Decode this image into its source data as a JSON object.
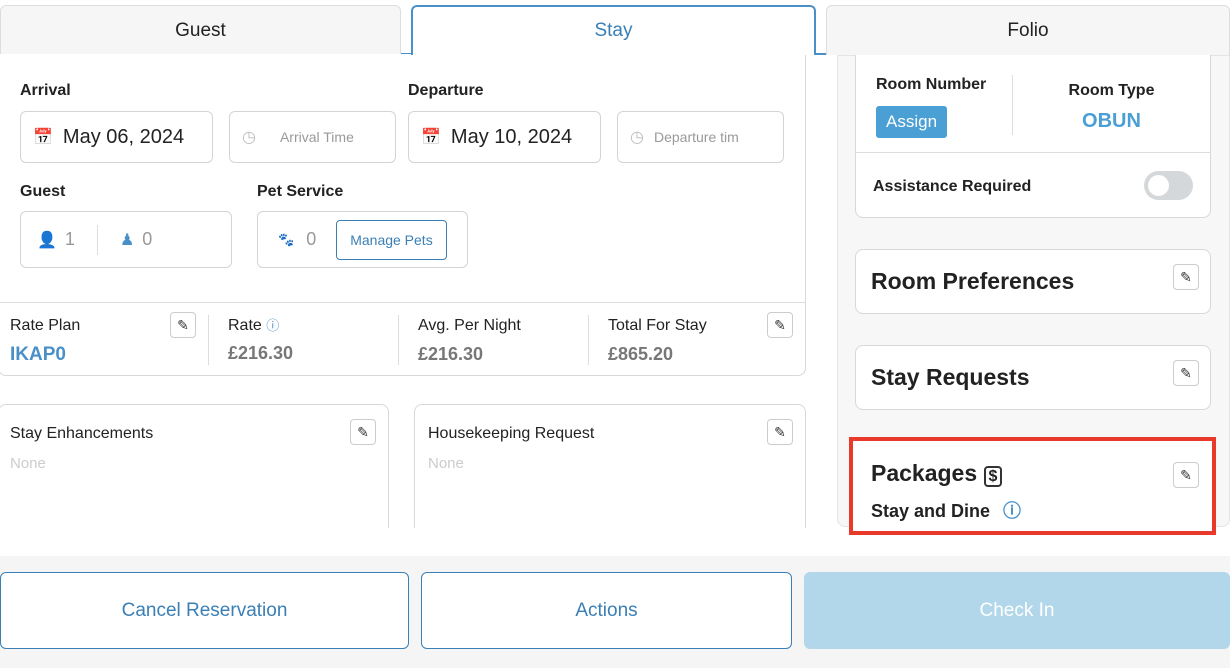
{
  "tabs": [
    {
      "label": "Guest"
    },
    {
      "label": "Stay"
    },
    {
      "label": "Folio"
    }
  ],
  "stay": {
    "arrival_label": "Arrival",
    "arrival_date": "May 06, 2024",
    "arrival_time_placeholder": "Arrival Time",
    "departure_label": "Departure",
    "departure_date": "May 10, 2024",
    "departure_time_placeholder": "Departure tim",
    "guest_label": "Guest",
    "adults": "1",
    "children": "0",
    "pet_label": "Pet Service",
    "pets": "0",
    "manage_pets": "Manage Pets"
  },
  "rates": {
    "rate_plan_label": "Rate Plan",
    "rate_plan": "IKAP0",
    "rate_label": "Rate",
    "rate": "£216.30",
    "avg_label": "Avg. Per Night",
    "avg": "£216.30",
    "total_label": "Total For Stay",
    "total": "£865.20"
  },
  "enhancements": {
    "title": "Stay Enhancements",
    "value": "None"
  },
  "housekeeping": {
    "title": "Housekeeping Request",
    "value": "None"
  },
  "room": {
    "number_label": "Room Number",
    "assign": "Assign",
    "type_label": "Room Type",
    "type": "OBUN",
    "assistance_label": "Assistance Required",
    "assistance_on": false
  },
  "room_preferences": "Room Preferences",
  "stay_requests": "Stay Requests",
  "packages": {
    "title": "Packages",
    "value": "Stay and Dine"
  },
  "actions": {
    "cancel": "Cancel Reservation",
    "actions": "Actions",
    "check_in": "Check In"
  },
  "colors": {
    "accent": "#3a7fb5",
    "highlight": "#e8392b",
    "check_in_bg": "#b3d7ea"
  }
}
